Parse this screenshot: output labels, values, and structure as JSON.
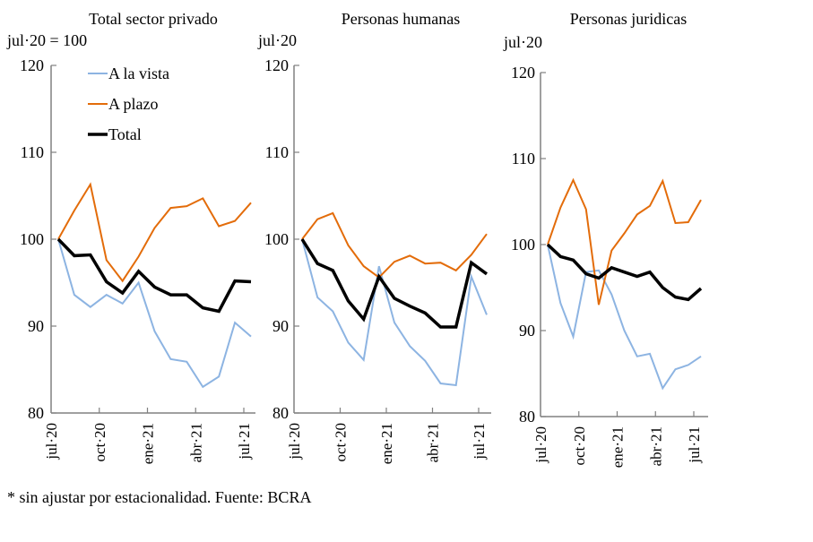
{
  "chart_data": [
    {
      "type": "line",
      "title": "Total sector privado",
      "ylabel": "jul-20 = 100",
      "ylim": [
        80,
        120
      ],
      "yticks": [
        "80",
        "90",
        "100",
        "110",
        "120"
      ],
      "xtick_labels": [
        "jul-20",
        "oct-20",
        "ene-21",
        "abr-21",
        "jul-21"
      ],
      "x": [
        "jul-20",
        "ago-20",
        "sep-20",
        "oct-20",
        "nov-20",
        "dic-20",
        "ene-21",
        "feb-21",
        "mar-21",
        "abr-21",
        "may-21",
        "jun-21",
        "jul-21"
      ],
      "legend": {
        "placement": "top-left",
        "entries": [
          "A la vista",
          "A plazo",
          "Total"
        ]
      },
      "series": [
        {
          "name": "A la vista",
          "color": "#8DB4E2",
          "values": [
            100,
            93.6,
            92.2,
            93.6,
            92.6,
            95.0,
            89.4,
            86.2,
            85.9,
            83.0,
            84.2,
            90.4,
            88.8
          ]
        },
        {
          "name": "A plazo",
          "color": "#E36C0A",
          "values": [
            100,
            103.3,
            106.3,
            97.6,
            95.2,
            98.0,
            101.3,
            103.6,
            103.8,
            104.7,
            101.5,
            102.1,
            104.2
          ]
        },
        {
          "name": "Total",
          "color": "#000000",
          "values": [
            100,
            98.1,
            98.2,
            95.1,
            93.8,
            96.3,
            94.5,
            93.6,
            93.6,
            92.1,
            91.7,
            95.2,
            95.1
          ]
        }
      ]
    },
    {
      "type": "line",
      "title": "Personas humanas",
      "ylabel": "jul-20",
      "ylim": [
        80,
        120
      ],
      "yticks": [
        "80",
        "90",
        "100",
        "110",
        "120"
      ],
      "xtick_labels": [
        "jul-20",
        "oct-20",
        "ene-21",
        "abr-21",
        "jul-21"
      ],
      "x": [
        "jul-20",
        "ago-20",
        "sep-20",
        "oct-20",
        "nov-20",
        "dic-20",
        "ene-21",
        "feb-21",
        "mar-21",
        "abr-21",
        "may-21",
        "jun-21",
        "jul-21"
      ],
      "series": [
        {
          "name": "A la vista",
          "color": "#8DB4E2",
          "values": [
            100,
            93.3,
            91.7,
            88.1,
            86.1,
            96.9,
            90.4,
            87.7,
            86.0,
            83.4,
            83.2,
            95.7,
            91.3
          ]
        },
        {
          "name": "A plazo",
          "color": "#E36C0A",
          "values": [
            100,
            102.3,
            103.0,
            99.3,
            96.9,
            95.6,
            97.4,
            98.1,
            97.2,
            97.3,
            96.4,
            98.2,
            100.6
          ]
        },
        {
          "name": "Total",
          "color": "#000000",
          "values": [
            100,
            97.2,
            96.4,
            92.9,
            90.8,
            95.7,
            93.2,
            92.3,
            91.5,
            89.9,
            89.9,
            97.3,
            96.0
          ]
        }
      ]
    },
    {
      "type": "line",
      "title": "Personas juridicas",
      "ylabel": "jul-20",
      "ylim": [
        80,
        120
      ],
      "yticks": [
        "80",
        "90",
        "100",
        "110",
        "120"
      ],
      "xtick_labels": [
        "jul-20",
        "oct-20",
        "ene-21",
        "abr-21",
        "jul-21"
      ],
      "x": [
        "jul-20",
        "ago-20",
        "sep-20",
        "oct-20",
        "nov-20",
        "dic-20",
        "ene-21",
        "feb-21",
        "mar-21",
        "abr-21",
        "may-21",
        "jun-21",
        "jul-21"
      ],
      "series": [
        {
          "name": "A la vista",
          "color": "#8DB4E2",
          "values": [
            100,
            93.2,
            89.3,
            96.8,
            97.0,
            94.2,
            90.0,
            87.0,
            87.3,
            83.3,
            85.5,
            86.0,
            87.0
          ]
        },
        {
          "name": "A plazo",
          "color": "#E36C0A",
          "values": [
            100,
            104.3,
            107.5,
            104.1,
            93.0,
            99.3,
            101.3,
            103.5,
            104.5,
            107.4,
            102.5,
            102.6,
            105.2
          ]
        },
        {
          "name": "Total",
          "color": "#000000",
          "values": [
            100,
            98.6,
            98.2,
            96.6,
            96.1,
            97.3,
            96.8,
            96.3,
            96.8,
            95.0,
            93.9,
            93.6,
            94.9
          ]
        }
      ]
    }
  ],
  "footnote": "* sin ajustar por estacionalidad. Fuente: BCRA"
}
